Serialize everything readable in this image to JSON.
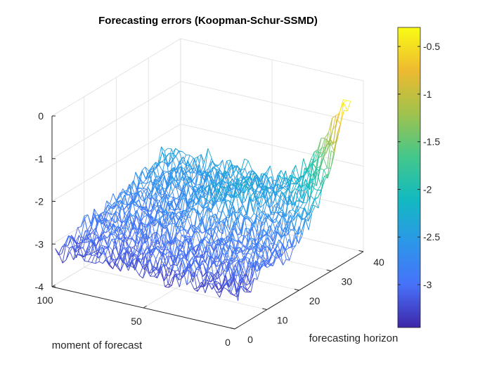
{
  "chart_data": {
    "type": "surface-mesh",
    "title": "Forecasting errors (Koopman-Schur-SSMD)",
    "xlabel": "forecasting horizon",
    "ylabel": "moment of forecast",
    "zlabel": "",
    "xlim": [
      0,
      40
    ],
    "ylim": [
      0,
      100
    ],
    "zlim": [
      -4,
      0
    ],
    "x_ticks": [
      "0",
      "10",
      "20",
      "30",
      "40"
    ],
    "y_ticks": [
      "0",
      "50",
      "100"
    ],
    "z_ticks": [
      "-4",
      "-3",
      "-2",
      "-1",
      "0"
    ],
    "grid": true,
    "colormap": "parula",
    "colormap_stops": [
      "#3e26a8",
      "#4772fa",
      "#2c97e8",
      "#12bac0",
      "#45c78a",
      "#a1c24c",
      "#eeba30",
      "#f9fb15"
    ],
    "colorbar": {
      "limits": [
        -3.45,
        -0.3
      ],
      "ticks": [
        "-3",
        "-2.5",
        "-2",
        "-1.5",
        "-1",
        "-0.5"
      ],
      "location": "right"
    },
    "surface_description": {
      "baseline_log_error_at_horizon_1": -3.2,
      "mean_log_error_growth_per_horizon_step": 0.02,
      "peak_log_error": -0.3,
      "peak_location": {
        "forecasting_horizon": 35,
        "moment_of_forecast": 0
      }
    }
  }
}
